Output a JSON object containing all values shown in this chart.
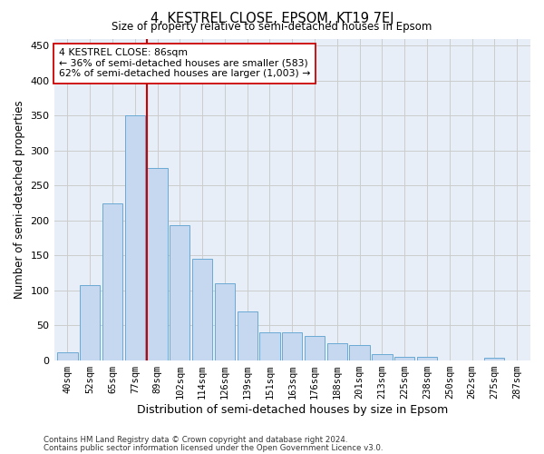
{
  "title": "4, KESTREL CLOSE, EPSOM, KT19 7EJ",
  "subtitle": "Size of property relative to semi-detached houses in Epsom",
  "xlabel": "Distribution of semi-detached houses by size in Epsom",
  "ylabel": "Number of semi-detached properties",
  "categories": [
    "40sqm",
    "52sqm",
    "65sqm",
    "77sqm",
    "89sqm",
    "102sqm",
    "114sqm",
    "126sqm",
    "139sqm",
    "151sqm",
    "163sqm",
    "176sqm",
    "188sqm",
    "201sqm",
    "213sqm",
    "225sqm",
    "238sqm",
    "250sqm",
    "262sqm",
    "275sqm",
    "287sqm"
  ],
  "values": [
    11,
    107,
    224,
    350,
    275,
    193,
    145,
    110,
    70,
    40,
    40,
    34,
    24,
    21,
    8,
    5,
    5,
    0,
    0,
    3,
    0
  ],
  "bar_color": "#c5d8f0",
  "bar_edge_color": "#6aaad4",
  "vline_color": "#cc0000",
  "vline_bin_index": 4,
  "annotation_text": "4 KESTREL CLOSE: 86sqm\n← 36% of semi-detached houses are smaller (583)\n62% of semi-detached houses are larger (1,003) →",
  "annotation_box_facecolor": "#ffffff",
  "annotation_box_edgecolor": "#cc0000",
  "ylim": [
    0,
    460
  ],
  "yticks": [
    0,
    50,
    100,
    150,
    200,
    250,
    300,
    350,
    400,
    450
  ],
  "grid_color": "#cccccc",
  "plot_bg_color": "#e8eef8",
  "footnote1": "Contains HM Land Registry data © Crown copyright and database right 2024.",
  "footnote2": "Contains public sector information licensed under the Open Government Licence v3.0."
}
